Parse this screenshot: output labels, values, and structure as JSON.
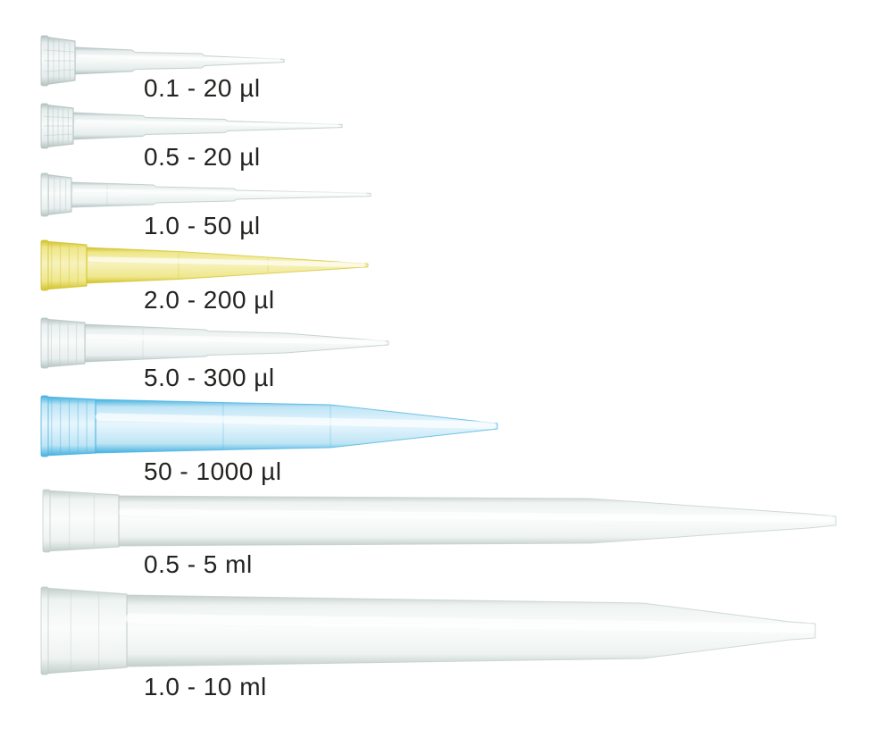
{
  "figure": {
    "description": "Eight laboratory pipette tips of increasing volume, each with a volume range caption",
    "background_color": "#ffffff",
    "label_text_color": "#232321"
  },
  "tips": [
    {
      "label": "0.1 - 20 µl",
      "min": "0.1",
      "max": "20",
      "unit": "µl",
      "color_name": "clear",
      "edge": "#b4c2c1",
      "body": "#e5edec",
      "mid": "#f7faf9"
    },
    {
      "label": "0.5 - 20 µl",
      "min": "0.5",
      "max": "20",
      "unit": "µl",
      "color_name": "clear",
      "edge": "#b4c2c1",
      "body": "#e5edec",
      "mid": "#f7faf9"
    },
    {
      "label": "1.0 - 50 µl",
      "min": "1.0",
      "max": "50",
      "unit": "µl",
      "color_name": "clear",
      "edge": "#b7c5c4",
      "body": "#e8efee",
      "mid": "#f8fbfa"
    },
    {
      "label": "2.0 - 200 µl",
      "min": "2.0",
      "max": "200",
      "unit": "µl",
      "color_name": "yellow",
      "edge": "#d2c22e",
      "body": "#efe78c",
      "mid": "#f7f2bd"
    },
    {
      "label": "5.0 - 300 µl",
      "min": "5.0",
      "max": "300",
      "unit": "µl",
      "color_name": "clear",
      "edge": "#b7c5c4",
      "body": "#e8efee",
      "mid": "#f8fbfa"
    },
    {
      "label": "50 - 1000 µl",
      "min": "50",
      "max": "1000",
      "unit": "µl",
      "color_name": "blue",
      "edge": "#45b1e0",
      "body": "#bfe5f5",
      "mid": "#e8f6fd"
    },
    {
      "label": "0.5 - 5 ml",
      "min": "0.5",
      "max": "5",
      "unit": "ml",
      "color_name": "clear",
      "edge": "#c2cecb",
      "body": "#eef3f1",
      "mid": "#fafcfb"
    },
    {
      "label": "1.0 - 10 ml",
      "min": "1.0",
      "max": "10",
      "unit": "ml",
      "color_name": "clear",
      "edge": "#c2cecb",
      "body": "#eef3f1",
      "mid": "#fafcfb"
    }
  ]
}
